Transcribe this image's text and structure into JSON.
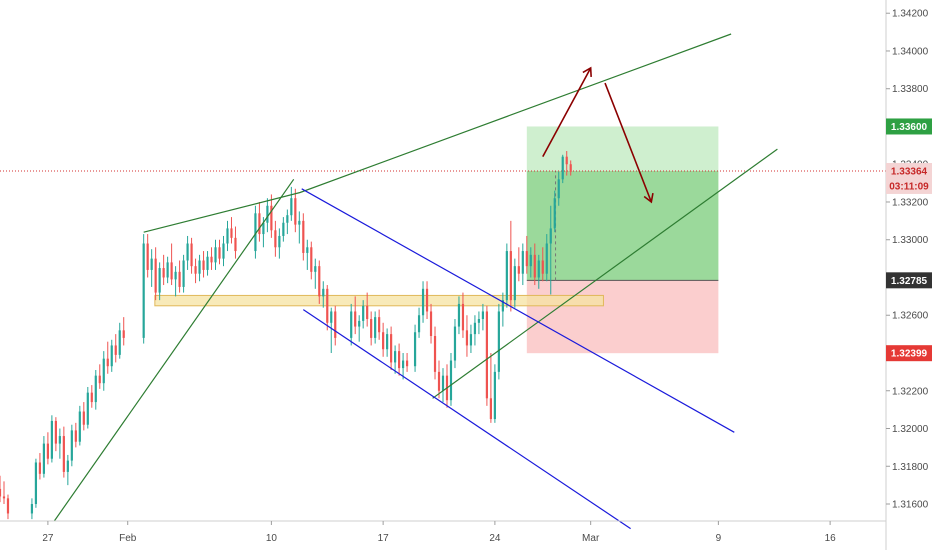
{
  "chart_data": {
    "type": "candlestick",
    "grid": false,
    "price_axis": {
      "ticks": [
        1.342,
        1.34,
        1.338,
        1.336,
        1.334,
        1.332,
        1.33,
        1.328,
        1.326,
        1.324,
        1.322,
        1.32,
        1.318,
        1.316
      ],
      "tick_labels": [
        "1.34200",
        "1.34000",
        "1.33800",
        "1.33600",
        "1.33400",
        "1.33200",
        "1.33000",
        "1.32800",
        "1.32600",
        "1.32400",
        "1.32200",
        "1.32000",
        "1.31800",
        "1.31600"
      ],
      "range": [
        1.3151,
        1.3427
      ]
    },
    "time_axis": {
      "labels": [
        "27",
        "Feb",
        "10",
        "17",
        "24",
        "Mar",
        "9",
        "16"
      ],
      "label_days": [
        -5,
        0,
        9,
        16,
        23,
        29,
        37,
        44
      ],
      "range_days": [
        -8,
        47.5
      ]
    },
    "price_tags": [
      {
        "label": "1.33600",
        "price": 1.336,
        "bg": "#2ea043",
        "fg": "#ffffff"
      },
      {
        "label": "1.33364",
        "price": 1.33364,
        "bg": "#f4d4d4",
        "fg": "#c62828"
      },
      {
        "label": "03:11:09",
        "price": 1.33285,
        "bg": "#f4d4d4",
        "fg": "#c62828"
      },
      {
        "label": "1.32785",
        "price": 1.32785,
        "bg": "#333333",
        "fg": "#ffffff"
      },
      {
        "label": "1.32399",
        "price": 1.32399,
        "bg": "#e53935",
        "fg": "#ffffff"
      }
    ],
    "position": {
      "entry": 1.32785,
      "target": 1.336,
      "stop": 1.32399,
      "current": 1.33364,
      "start_day": 25.0,
      "end_day": 37.0,
      "current_day": 26.8
    },
    "support_zone": {
      "top": 1.32705,
      "bottom": 1.3265,
      "start_day": 1.7,
      "end_day": 29.8
    },
    "trendlines": [
      {
        "color": "#2e7d32",
        "points": [
          [
            -4.6,
            1.3151
          ],
          [
            10.4,
            1.3332
          ]
        ]
      },
      {
        "color": "#2e7d32",
        "points": [
          [
            1.0,
            1.3304
          ],
          [
            10.8,
            1.3325
          ],
          [
            37.8,
            1.3409
          ]
        ]
      },
      {
        "color": "#2e7d32",
        "points": [
          [
            19.1,
            1.3216
          ],
          [
            40.7,
            1.3348
          ]
        ]
      },
      {
        "color": "#1a1adb",
        "points": [
          [
            10.9,
            1.3327
          ],
          [
            38.0,
            1.3198
          ]
        ]
      },
      {
        "color": "#1a1adb",
        "points": [
          [
            11.0,
            1.3263
          ],
          [
            31.5,
            1.3147
          ]
        ]
      }
    ],
    "arrows": [
      {
        "color": "#8b0000",
        "from": [
          26.0,
          1.3344
        ],
        "to": [
          29.0,
          1.3391
        ]
      },
      {
        "color": "#8b0000",
        "from": [
          29.9,
          1.3383
        ],
        "to": [
          32.8,
          1.332
        ]
      }
    ],
    "up_color": "#26a69a",
    "down_color": "#ef5350",
    "candles": [
      [
        -8.0,
        1.3168,
        1.3175,
        1.3161,
        1.3164
      ],
      [
        -7.75,
        1.3164,
        1.3172,
        1.316,
        1.3163
      ],
      [
        -7.5,
        1.3163,
        1.3165,
        1.3152,
        1.3155
      ],
      [
        -6.0,
        1.3155,
        1.3163,
        1.3152,
        1.316
      ],
      [
        -5.75,
        1.316,
        1.3184,
        1.3158,
        1.3182
      ],
      [
        -5.5,
        1.3182,
        1.3187,
        1.3173,
        1.3176
      ],
      [
        -5.25,
        1.3176,
        1.3196,
        1.3174,
        1.3192
      ],
      [
        -5.0,
        1.3192,
        1.3198,
        1.3181,
        1.3184
      ],
      [
        -4.75,
        1.3184,
        1.3207,
        1.3182,
        1.3204
      ],
      [
        -4.5,
        1.3204,
        1.3206,
        1.3188,
        1.3192
      ],
      [
        -4.25,
        1.3192,
        1.32,
        1.3184,
        1.3196
      ],
      [
        -4.0,
        1.3196,
        1.3201,
        1.3174,
        1.3177
      ],
      [
        -3.75,
        1.3177,
        1.3186,
        1.317,
        1.3183
      ],
      [
        -3.5,
        1.3183,
        1.3202,
        1.318,
        1.3199
      ],
      [
        -3.25,
        1.3199,
        1.3203,
        1.319,
        1.3193
      ],
      [
        -3.0,
        1.3193,
        1.3212,
        1.3191,
        1.3209
      ],
      [
        -2.75,
        1.3209,
        1.3214,
        1.3199,
        1.3202
      ],
      [
        -2.5,
        1.3202,
        1.3222,
        1.32,
        1.3219
      ],
      [
        -2.25,
        1.3219,
        1.3223,
        1.3211,
        1.3214
      ],
      [
        -2.0,
        1.3214,
        1.3231,
        1.321,
        1.3228
      ],
      [
        -1.75,
        1.3228,
        1.3234,
        1.3221,
        1.3224
      ],
      [
        -1.5,
        1.3224,
        1.3241,
        1.322,
        1.3237
      ],
      [
        -1.25,
        1.3237,
        1.3246,
        1.3229,
        1.3233
      ],
      [
        -1.0,
        1.3233,
        1.3247,
        1.323,
        1.3244
      ],
      [
        -0.75,
        1.3244,
        1.325,
        1.3235,
        1.3239
      ],
      [
        -0.5,
        1.3239,
        1.3256,
        1.3237,
        1.3252
      ],
      [
        -0.25,
        1.3252,
        1.3259,
        1.3244,
        1.3248
      ],
      [
        1.0,
        1.3248,
        1.3303,
        1.3245,
        1.3298
      ],
      [
        1.25,
        1.3298,
        1.3303,
        1.328,
        1.3284
      ],
      [
        1.5,
        1.3284,
        1.3295,
        1.3275,
        1.329
      ],
      [
        1.75,
        1.329,
        1.3296,
        1.3268,
        1.3272
      ],
      [
        2.0,
        1.3272,
        1.3288,
        1.3268,
        1.3285
      ],
      [
        2.25,
        1.3285,
        1.3292,
        1.3276,
        1.328
      ],
      [
        2.5,
        1.328,
        1.3291,
        1.3277,
        1.3288
      ],
      [
        2.75,
        1.3288,
        1.3298,
        1.3276,
        1.3279
      ],
      [
        3.0,
        1.3279,
        1.3286,
        1.327,
        1.3283
      ],
      [
        3.25,
        1.3283,
        1.3289,
        1.3272,
        1.3275
      ],
      [
        3.5,
        1.3275,
        1.3292,
        1.3272,
        1.3289
      ],
      [
        3.75,
        1.3289,
        1.3302,
        1.3284,
        1.3298
      ],
      [
        4.0,
        1.3298,
        1.3301,
        1.3282,
        1.3286
      ],
      [
        4.25,
        1.3286,
        1.329,
        1.3277,
        1.3282
      ],
      [
        4.5,
        1.3282,
        1.3292,
        1.3278,
        1.3289
      ],
      [
        4.75,
        1.3289,
        1.3294,
        1.328,
        1.3284
      ],
      [
        5.0,
        1.3284,
        1.3294,
        1.3281,
        1.3291
      ],
      [
        5.25,
        1.3291,
        1.3296,
        1.3284,
        1.3288
      ],
      [
        5.5,
        1.3288,
        1.33,
        1.3284,
        1.3296
      ],
      [
        5.75,
        1.3296,
        1.33,
        1.3287,
        1.329
      ],
      [
        6.0,
        1.329,
        1.3302,
        1.3286,
        1.3298
      ],
      [
        6.25,
        1.3298,
        1.331,
        1.3294,
        1.3306
      ],
      [
        6.5,
        1.3306,
        1.3312,
        1.3298,
        1.3301
      ],
      [
        6.75,
        1.3301,
        1.3307,
        1.329,
        1.3294
      ],
      [
        8.0,
        1.3294,
        1.3318,
        1.329,
        1.3314
      ],
      [
        8.25,
        1.3314,
        1.332,
        1.3299,
        1.3303
      ],
      [
        8.5,
        1.3303,
        1.3312,
        1.3296,
        1.3309
      ],
      [
        8.75,
        1.3309,
        1.3322,
        1.3304,
        1.3318
      ],
      [
        9.0,
        1.3318,
        1.3324,
        1.3301,
        1.3305
      ],
      [
        9.25,
        1.3305,
        1.331,
        1.3291,
        1.3296
      ],
      [
        9.5,
        1.3296,
        1.3306,
        1.329,
        1.3302
      ],
      [
        9.75,
        1.3302,
        1.3312,
        1.3299,
        1.3309
      ],
      [
        10.0,
        1.3309,
        1.3316,
        1.3303,
        1.3313
      ],
      [
        10.25,
        1.3313,
        1.3328,
        1.331,
        1.3322
      ],
      [
        10.5,
        1.3322,
        1.3327,
        1.3304,
        1.3308
      ],
      [
        10.75,
        1.3308,
        1.3315,
        1.3298,
        1.331
      ],
      [
        11.0,
        1.331,
        1.3314,
        1.3289,
        1.3293
      ],
      [
        11.25,
        1.3293,
        1.33,
        1.3284,
        1.3296
      ],
      [
        11.5,
        1.3296,
        1.3299,
        1.3279,
        1.3283
      ],
      [
        11.75,
        1.3283,
        1.329,
        1.3274,
        1.3286
      ],
      [
        12.0,
        1.3286,
        1.3289,
        1.3266,
        1.327
      ],
      [
        12.25,
        1.327,
        1.3278,
        1.3264,
        1.3274
      ],
      [
        12.5,
        1.3274,
        1.3276,
        1.3252,
        1.3256
      ],
      [
        12.75,
        1.3256,
        1.3264,
        1.324,
        1.3262
      ],
      [
        13.0,
        1.3262,
        1.3265,
        1.3244,
        1.3248
      ],
      [
        14.0,
        1.3248,
        1.3266,
        1.3244,
        1.3262
      ],
      [
        14.25,
        1.3262,
        1.327,
        1.325,
        1.3254
      ],
      [
        14.5,
        1.3254,
        1.326,
        1.3246,
        1.3257
      ],
      [
        14.75,
        1.3257,
        1.3268,
        1.3253,
        1.3265
      ],
      [
        15.0,
        1.3265,
        1.3272,
        1.3254,
        1.3258
      ],
      [
        15.25,
        1.3258,
        1.3262,
        1.3244,
        1.3248
      ],
      [
        15.5,
        1.3248,
        1.3262,
        1.3245,
        1.3259
      ],
      [
        15.75,
        1.3259,
        1.3263,
        1.3247,
        1.3251
      ],
      [
        16.0,
        1.3251,
        1.3256,
        1.3238,
        1.3242
      ],
      [
        16.25,
        1.3242,
        1.3253,
        1.3238,
        1.325
      ],
      [
        16.5,
        1.325,
        1.3254,
        1.3231,
        1.3235
      ],
      [
        16.75,
        1.3235,
        1.3244,
        1.3229,
        1.3241
      ],
      [
        17.0,
        1.3241,
        1.3245,
        1.3228,
        1.3232
      ],
      [
        17.25,
        1.3232,
        1.324,
        1.3226,
        1.3236
      ],
      [
        17.5,
        1.3236,
        1.324,
        1.323,
        1.3233
      ],
      [
        18.0,
        1.3233,
        1.3255,
        1.323,
        1.3251
      ],
      [
        18.25,
        1.3251,
        1.3264,
        1.3248,
        1.326
      ],
      [
        18.5,
        1.326,
        1.3278,
        1.3256,
        1.3274
      ],
      [
        18.75,
        1.3274,
        1.3278,
        1.3258,
        1.3262
      ],
      [
        19.0,
        1.3262,
        1.3266,
        1.3245,
        1.3249
      ],
      [
        19.25,
        1.3249,
        1.3254,
        1.3226,
        1.323
      ],
      [
        19.5,
        1.323,
        1.3236,
        1.3216,
        1.322
      ],
      [
        19.75,
        1.322,
        1.3232,
        1.3214,
        1.3228
      ],
      [
        20.0,
        1.3228,
        1.3234,
        1.3211,
        1.3215
      ],
      [
        20.25,
        1.3215,
        1.324,
        1.3212,
        1.3236
      ],
      [
        20.5,
        1.3236,
        1.3258,
        1.3232,
        1.3254
      ],
      [
        20.75,
        1.3254,
        1.327,
        1.325,
        1.3266
      ],
      [
        21.0,
        1.3266,
        1.3272,
        1.3248,
        1.3252
      ],
      [
        21.25,
        1.3252,
        1.326,
        1.3238,
        1.3244
      ],
      [
        21.5,
        1.3244,
        1.3255,
        1.324,
        1.325
      ],
      [
        21.75,
        1.325,
        1.326,
        1.3244,
        1.3256
      ],
      [
        22.0,
        1.3256,
        1.3262,
        1.325,
        1.3258
      ],
      [
        22.25,
        1.3258,
        1.3266,
        1.3252,
        1.3262
      ],
      [
        22.5,
        1.3262,
        1.3265,
        1.3212,
        1.3216
      ],
      [
        22.75,
        1.3216,
        1.324,
        1.3203,
        1.3205
      ],
      [
        23.0,
        1.3205,
        1.3234,
        1.3203,
        1.323
      ],
      [
        23.25,
        1.323,
        1.3266,
        1.3226,
        1.3262
      ],
      [
        23.5,
        1.3262,
        1.3272,
        1.3254,
        1.3268
      ],
      [
        23.75,
        1.3268,
        1.3298,
        1.3264,
        1.3294
      ],
      [
        24.0,
        1.3294,
        1.331,
        1.3262,
        1.3268
      ],
      [
        24.25,
        1.3268,
        1.329,
        1.3264,
        1.3286
      ],
      [
        24.5,
        1.3286,
        1.3296,
        1.3278,
        1.3282
      ],
      [
        24.75,
        1.3282,
        1.3298,
        1.3276,
        1.3294
      ],
      [
        25.0,
        1.3294,
        1.3302,
        1.3282,
        1.3286
      ],
      [
        25.25,
        1.3286,
        1.3296,
        1.328,
        1.3292
      ],
      [
        25.5,
        1.3292,
        1.3298,
        1.3276,
        1.328
      ],
      [
        25.75,
        1.328,
        1.3292,
        1.3274,
        1.3289
      ],
      [
        26.0,
        1.3289,
        1.3296,
        1.3278,
        1.3282
      ],
      [
        26.25,
        1.3282,
        1.3303,
        1.3278,
        1.3298
      ],
      [
        26.5,
        1.3298,
        1.3318,
        1.3271,
        1.3306
      ],
      [
        26.75,
        1.3306,
        1.3326,
        1.3304,
        1.3322
      ],
      [
        27.0,
        1.3322,
        1.3336,
        1.3318,
        1.3332
      ],
      [
        27.25,
        1.3332,
        1.3345,
        1.333,
        1.3344
      ],
      [
        27.5,
        1.3344,
        1.3347,
        1.3334,
        1.334
      ],
      [
        27.75,
        1.334,
        1.3342,
        1.3334,
        1.3336
      ]
    ]
  }
}
